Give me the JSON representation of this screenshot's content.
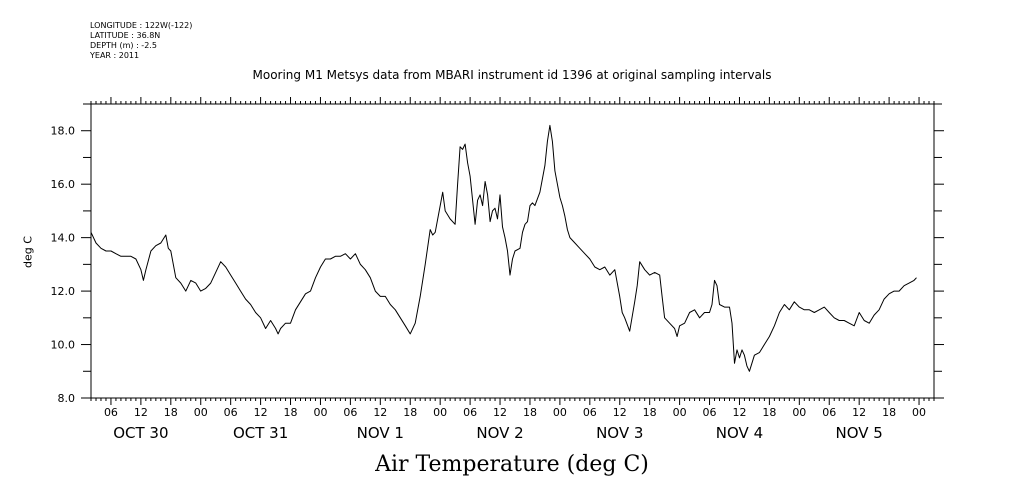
{
  "header": {
    "longitude": "LONGITUDE : 122W(-122)",
    "latitude": "LATITUDE : 36.8N",
    "depth": "DEPTH (m) : -2.5",
    "year": "YEAR : 2011"
  },
  "chart_data": {
    "type": "line",
    "title": "Mooring M1 Metsys data from MBARI instrument id 1396 at original sampling intervals",
    "xlabel": "Air Temperature (deg C)",
    "ylabel": "deg C",
    "ylim": [
      8.0,
      19.0
    ],
    "xlim_hours": [
      0,
      169
    ],
    "grid": false,
    "y_ticks": [
      "8.0",
      "10.0",
      "12.0",
      "14.0",
      "16.0",
      "18.0"
    ],
    "x_hour_ticks": [
      "06",
      "12",
      "18",
      "00",
      "06",
      "12",
      "18",
      "00",
      "06",
      "12",
      "18",
      "00",
      "06",
      "12",
      "18",
      "00",
      "06",
      "12",
      "18",
      "00",
      "06",
      "12",
      "18",
      "00",
      "06",
      "12",
      "18",
      "00"
    ],
    "x_day_labels": [
      "OCT 30",
      "OCT 31",
      "NOV  1",
      "NOV  2",
      "NOV  3",
      "NOV  4",
      "NOV  5"
    ],
    "series": [
      {
        "color": "#000000",
        "points": [
          [
            0.0,
            14.2
          ],
          [
            1.0,
            13.8
          ],
          [
            2.0,
            13.6
          ],
          [
            3.0,
            13.5
          ],
          [
            4.0,
            13.5
          ],
          [
            5.0,
            13.4
          ],
          [
            6.0,
            13.3
          ],
          [
            7.0,
            13.3
          ],
          [
            8.0,
            13.3
          ],
          [
            9.0,
            13.2
          ],
          [
            10.0,
            12.8
          ],
          [
            10.5,
            12.4
          ],
          [
            11.0,
            12.8
          ],
          [
            12.0,
            13.5
          ],
          [
            13.0,
            13.7
          ],
          [
            14.0,
            13.8
          ],
          [
            15.0,
            14.1
          ],
          [
            15.5,
            13.6
          ],
          [
            16.0,
            13.5
          ],
          [
            17.0,
            12.5
          ],
          [
            18.0,
            12.3
          ],
          [
            19.0,
            12.0
          ],
          [
            20.0,
            12.4
          ],
          [
            21.0,
            12.3
          ],
          [
            22.0,
            12.0
          ],
          [
            23.0,
            12.1
          ],
          [
            24.0,
            12.3
          ],
          [
            25.0,
            12.7
          ],
          [
            26.0,
            13.1
          ],
          [
            27.0,
            12.9
          ],
          [
            28.0,
            12.6
          ],
          [
            29.0,
            12.3
          ],
          [
            30.0,
            12.0
          ],
          [
            31.0,
            11.7
          ],
          [
            32.0,
            11.5
          ],
          [
            33.0,
            11.2
          ],
          [
            34.0,
            11.0
          ],
          [
            35.0,
            10.6
          ],
          [
            36.0,
            10.9
          ],
          [
            37.0,
            10.6
          ],
          [
            37.5,
            10.4
          ],
          [
            38.0,
            10.6
          ],
          [
            39.0,
            10.8
          ],
          [
            40.0,
            10.8
          ],
          [
            41.0,
            11.3
          ],
          [
            42.0,
            11.6
          ],
          [
            43.0,
            11.9
          ],
          [
            44.0,
            12.0
          ],
          [
            45.0,
            12.5
          ],
          [
            46.0,
            12.9
          ],
          [
            47.0,
            13.2
          ],
          [
            48.0,
            13.2
          ],
          [
            49.0,
            13.3
          ],
          [
            50.0,
            13.3
          ],
          [
            51.0,
            13.4
          ],
          [
            52.0,
            13.2
          ],
          [
            53.0,
            13.4
          ],
          [
            54.0,
            13.0
          ],
          [
            55.0,
            12.8
          ],
          [
            56.0,
            12.5
          ],
          [
            57.0,
            12.0
          ],
          [
            58.0,
            11.8
          ],
          [
            59.0,
            11.8
          ],
          [
            60.0,
            11.5
          ],
          [
            61.0,
            11.3
          ],
          [
            62.0,
            11.0
          ],
          [
            63.0,
            10.7
          ],
          [
            64.0,
            10.4
          ],
          [
            65.0,
            10.8
          ],
          [
            66.0,
            11.8
          ],
          [
            67.0,
            13.0
          ],
          [
            68.0,
            14.3
          ],
          [
            68.5,
            14.1
          ],
          [
            69.0,
            14.2
          ],
          [
            70.0,
            15.2
          ],
          [
            70.5,
            15.7
          ],
          [
            71.0,
            15.0
          ],
          [
            72.0,
            14.7
          ],
          [
            73.0,
            14.5
          ],
          [
            73.5,
            16.0
          ],
          [
            74.0,
            17.4
          ],
          [
            74.5,
            17.3
          ],
          [
            75.0,
            17.5
          ],
          [
            75.5,
            16.8
          ],
          [
            76.0,
            16.3
          ],
          [
            76.5,
            15.4
          ],
          [
            77.0,
            14.5
          ],
          [
            77.5,
            15.4
          ],
          [
            78.0,
            15.6
          ],
          [
            78.5,
            15.2
          ],
          [
            79.0,
            16.1
          ],
          [
            79.5,
            15.6
          ],
          [
            80.0,
            14.6
          ],
          [
            80.5,
            15.0
          ],
          [
            81.0,
            15.1
          ],
          [
            81.5,
            14.7
          ],
          [
            82.0,
            15.6
          ],
          [
            82.5,
            14.4
          ],
          [
            83.0,
            14.0
          ],
          [
            83.5,
            13.5
          ],
          [
            84.0,
            12.6
          ],
          [
            84.5,
            13.2
          ],
          [
            85.0,
            13.5
          ],
          [
            86.0,
            13.6
          ],
          [
            86.5,
            14.2
          ],
          [
            87.0,
            14.5
          ],
          [
            87.5,
            14.6
          ],
          [
            88.0,
            15.2
          ],
          [
            88.5,
            15.3
          ],
          [
            89.0,
            15.2
          ],
          [
            90.0,
            15.7
          ],
          [
            91.0,
            16.7
          ],
          [
            91.5,
            17.6
          ],
          [
            92.0,
            18.2
          ],
          [
            92.5,
            17.6
          ],
          [
            93.0,
            16.5
          ],
          [
            93.5,
            16.0
          ],
          [
            94.0,
            15.5
          ],
          [
            94.5,
            15.2
          ],
          [
            95.0,
            14.8
          ],
          [
            95.5,
            14.3
          ],
          [
            96.0,
            14.0
          ],
          [
            97.0,
            13.8
          ],
          [
            98.0,
            13.6
          ],
          [
            99.0,
            13.4
          ],
          [
            100.0,
            13.2
          ],
          [
            101.0,
            12.9
          ],
          [
            102.0,
            12.8
          ],
          [
            103.0,
            12.9
          ],
          [
            104.0,
            12.6
          ],
          [
            105.0,
            12.8
          ],
          [
            106.0,
            11.8
          ],
          [
            106.5,
            11.2
          ],
          [
            107.0,
            11.0
          ],
          [
            108.0,
            10.5
          ],
          [
            109.0,
            11.6
          ],
          [
            109.5,
            12.2
          ],
          [
            110.0,
            13.1
          ],
          [
            111.0,
            12.8
          ],
          [
            112.0,
            12.6
          ],
          [
            113.0,
            12.7
          ],
          [
            114.0,
            12.6
          ],
          [
            114.5,
            11.8
          ],
          [
            115.0,
            11.0
          ],
          [
            116.0,
            10.8
          ],
          [
            117.0,
            10.6
          ],
          [
            117.5,
            10.3
          ],
          [
            118.0,
            10.7
          ],
          [
            119.0,
            10.8
          ],
          [
            120.0,
            11.2
          ],
          [
            121.0,
            11.3
          ],
          [
            122.0,
            11.0
          ],
          [
            123.0,
            11.2
          ],
          [
            124.0,
            11.2
          ],
          [
            124.5,
            11.5
          ],
          [
            125.0,
            12.4
          ],
          [
            125.5,
            12.2
          ],
          [
            126.0,
            11.5
          ],
          [
            127.0,
            11.4
          ],
          [
            128.0,
            11.4
          ],
          [
            128.5,
            10.8
          ],
          [
            129.0,
            9.3
          ],
          [
            129.5,
            9.8
          ],
          [
            130.0,
            9.5
          ],
          [
            130.5,
            9.8
          ],
          [
            131.0,
            9.6
          ],
          [
            131.5,
            9.2
          ],
          [
            132.0,
            9.0
          ],
          [
            132.5,
            9.3
          ],
          [
            133.0,
            9.6
          ],
          [
            134.0,
            9.7
          ],
          [
            135.0,
            10.0
          ],
          [
            136.0,
            10.3
          ],
          [
            137.0,
            10.7
          ],
          [
            138.0,
            11.2
          ],
          [
            139.0,
            11.5
          ],
          [
            140.0,
            11.3
          ],
          [
            141.0,
            11.6
          ],
          [
            142.0,
            11.4
          ],
          [
            143.0,
            11.3
          ],
          [
            144.0,
            11.3
          ],
          [
            145.0,
            11.2
          ],
          [
            146.0,
            11.3
          ],
          [
            147.0,
            11.4
          ],
          [
            148.0,
            11.2
          ],
          [
            149.0,
            11.0
          ],
          [
            150.0,
            10.9
          ],
          [
            151.0,
            10.9
          ],
          [
            152.0,
            10.8
          ],
          [
            153.0,
            10.7
          ],
          [
            154.0,
            11.2
          ],
          [
            155.0,
            10.9
          ],
          [
            156.0,
            10.8
          ],
          [
            157.0,
            11.1
          ],
          [
            158.0,
            11.3
          ],
          [
            159.0,
            11.7
          ],
          [
            160.0,
            11.9
          ],
          [
            161.0,
            12.0
          ],
          [
            162.0,
            12.0
          ],
          [
            163.0,
            12.2
          ],
          [
            164.0,
            12.3
          ],
          [
            165.0,
            12.4
          ],
          [
            165.5,
            12.5
          ]
        ]
      }
    ]
  }
}
